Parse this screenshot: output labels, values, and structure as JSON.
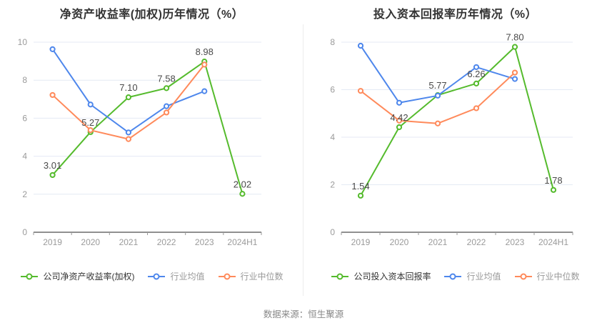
{
  "page": {
    "source_text": "数据来源：恒生聚源",
    "background": "#ffffff",
    "divider_color": "#ececec"
  },
  "chart_data": [
    {
      "type": "line",
      "title": "净资产收益率(加权)历年情况（%）",
      "categories": [
        "2019",
        "2020",
        "2021",
        "2022",
        "2023",
        "2024H1"
      ],
      "ylim": [
        0,
        10
      ],
      "ytick_step": 2,
      "grid": true,
      "legend_position": "bottom",
      "series": [
        {
          "name": "公司净资产收益率(加权)",
          "color": "#55bb2d",
          "labeled": true,
          "values": [
            3.01,
            5.27,
            7.1,
            7.58,
            8.98,
            2.02
          ]
        },
        {
          "name": "行业均值",
          "color": "#4e87ec",
          "labeled": false,
          "values": [
            9.63,
            6.72,
            5.25,
            6.63,
            7.42,
            null
          ]
        },
        {
          "name": "行业中位数",
          "color": "#ff8a5b",
          "labeled": false,
          "values": [
            7.22,
            5.37,
            4.9,
            6.3,
            8.82,
            null
          ]
        }
      ]
    },
    {
      "type": "line",
      "title": "投入资本回报率历年情况（%）",
      "categories": [
        "2019",
        "2020",
        "2021",
        "2022",
        "2023",
        "2024H1"
      ],
      "ylim": [
        0,
        8
      ],
      "ytick_step": 2,
      "grid": true,
      "legend_position": "bottom",
      "series": [
        {
          "name": "公司投入资本回报率",
          "color": "#55bb2d",
          "labeled": true,
          "values": [
            1.54,
            4.42,
            5.77,
            6.26,
            7.8,
            1.78
          ]
        },
        {
          "name": "行业均值",
          "color": "#4e87ec",
          "labeled": false,
          "values": [
            7.85,
            5.45,
            5.75,
            6.95,
            6.45,
            null
          ]
        },
        {
          "name": "行业中位数",
          "color": "#ff8a5b",
          "labeled": false,
          "values": [
            5.95,
            4.7,
            4.58,
            5.22,
            6.72,
            null
          ]
        }
      ]
    }
  ]
}
